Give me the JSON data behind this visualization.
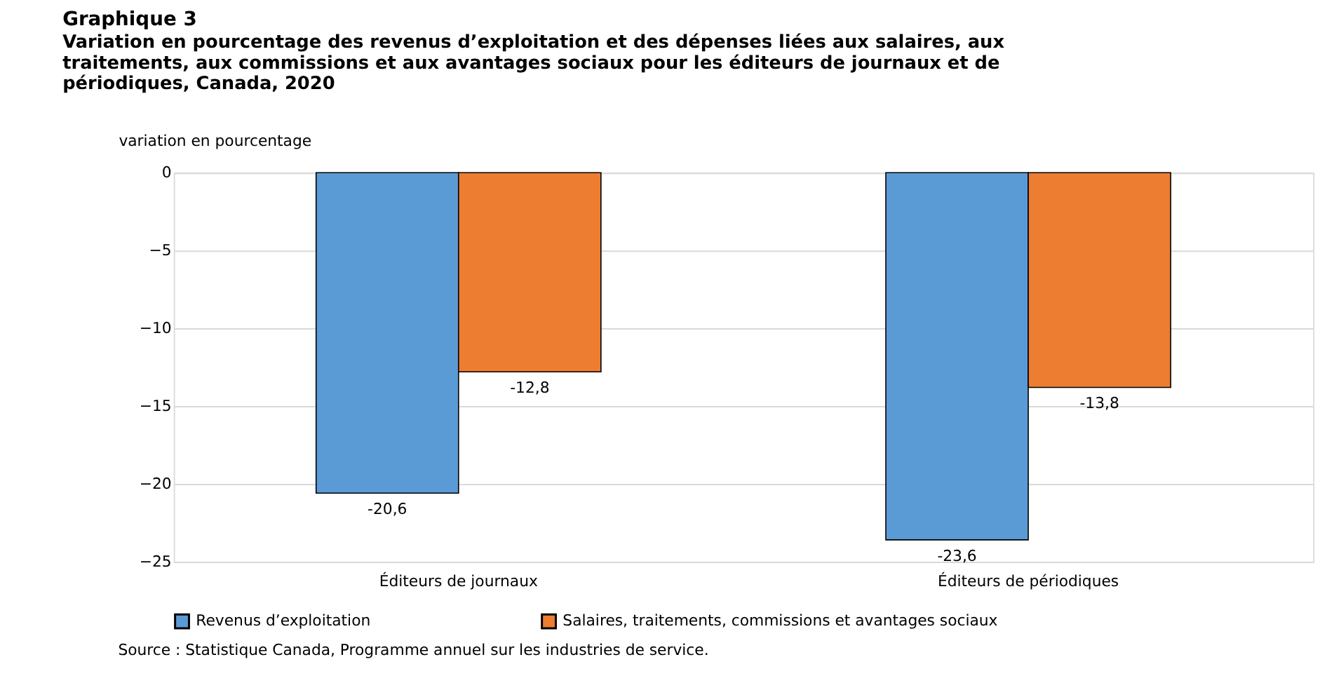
{
  "chart_data": {
    "type": "bar",
    "title": "Graphique 3",
    "subtitle": "Variation en pourcentage des revenus d’exploitation et des dépenses liées aux salaires, aux traitements, aux commissions et aux avantages sociaux pour les éditeurs de journaux et de périodiques, Canada, 2020",
    "ylabel": "variation en pourcentage",
    "categories": [
      "Éditeurs de journaux",
      "Éditeurs de périodiques"
    ],
    "series": [
      {
        "name": "Revenus d’exploitation",
        "color": "#5b9bd5",
        "values": [
          -20.6,
          -23.6
        ],
        "value_labels": [
          "-20,6",
          "-23,6"
        ]
      },
      {
        "name": "Salaires, traitements, commissions et avantages sociaux",
        "color": "#ed7d31",
        "values": [
          -12.8,
          -13.8
        ],
        "value_labels": [
          "-12,8",
          "-13,8"
        ]
      }
    ],
    "ylim": [
      -25,
      0
    ],
    "yticks": [
      0,
      -5,
      -10,
      -15,
      -20,
      -25
    ],
    "grid": "y",
    "legend": "bottom",
    "annotations": [
      "Source : Statistique Canada, Programme annuel sur les industries de service."
    ]
  }
}
